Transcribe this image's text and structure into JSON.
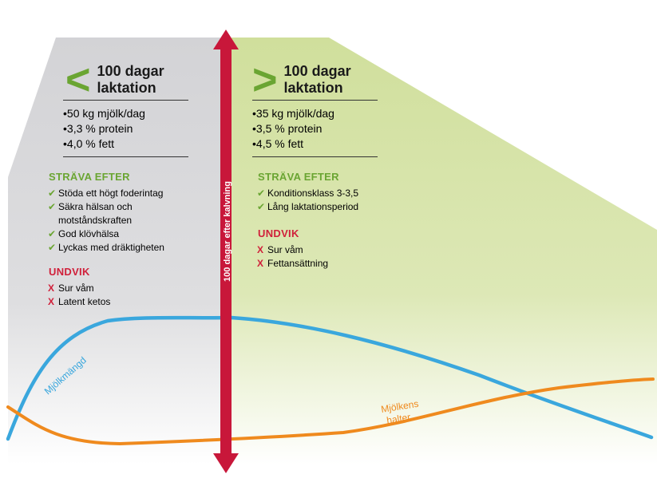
{
  "left": {
    "symbol": "<",
    "title_line1": "100 dagar",
    "title_line2": "laktation",
    "facts": [
      "50 kg mjölk/dag",
      "3,3 % protein",
      "4,0 % fett"
    ],
    "strive_heading": "STRÄVA EFTER",
    "strive_items": [
      "Stöda ett högt foderintag",
      "Säkra hälsan och",
      "motståndskraften",
      "God klövhälsa",
      "Lyckas med dräktigheten"
    ],
    "avoid_heading": "UNDVIK",
    "avoid_items": [
      "Sur våm",
      "Latent ketos"
    ]
  },
  "right": {
    "symbol": ">",
    "title_line1": "100 dagar",
    "title_line2": "laktation",
    "facts": [
      "35 kg mjölk/dag",
      "3,5 % protein",
      "4,5 % fett"
    ],
    "strive_heading": "STRÄVA EFTER",
    "strive_items": [
      "Konditionsklass 3-3,5",
      "Lång laktationsperiod"
    ],
    "avoid_heading": "UNDVIK",
    "avoid_items": [
      "Sur våm",
      "Fettansättning"
    ]
  },
  "divider_label": "100 dagar efter kalvning",
  "curves": {
    "milk_label": "Mjölkmängd",
    "content_label_line1": "Mjölkens",
    "content_label_line2": "halter"
  },
  "marks": {
    "check": "✔",
    "cross": "X"
  },
  "colors": {
    "left_panel": "#d6d6d8",
    "right_panel": "#d6e3a8",
    "arrow": "#c8173a",
    "milk_curve": "#3aa7dd",
    "content_curve": "#ef8a1e",
    "accent_green": "#6aa532",
    "accent_red": "#d0203a"
  }
}
